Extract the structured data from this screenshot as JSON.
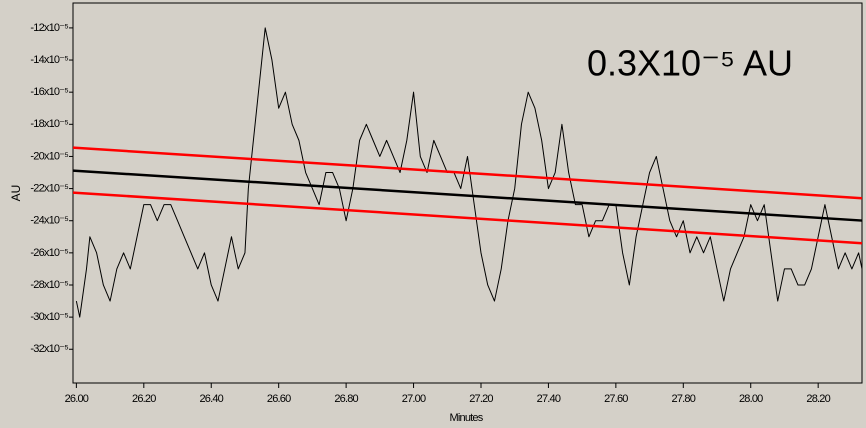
{
  "chart_data": {
    "type": "line",
    "ylabel": "AU",
    "xlabel": "Minutes",
    "annotation": "0.3X10⁻⁵ AU",
    "xlim": [
      25.99,
      28.33
    ],
    "ylim": [
      -0.000341,
      -0.0001045
    ],
    "xticks": [
      {
        "value": 26.0,
        "label": "26.00"
      },
      {
        "value": 26.2,
        "label": "26.20"
      },
      {
        "value": 26.4,
        "label": "26.40"
      },
      {
        "value": 26.6,
        "label": "26.60"
      },
      {
        "value": 26.8,
        "label": "26.80"
      },
      {
        "value": 27.0,
        "label": "27.00"
      },
      {
        "value": 27.2,
        "label": "27.20"
      },
      {
        "value": 27.4,
        "label": "27.40"
      },
      {
        "value": 27.6,
        "label": "27.60"
      },
      {
        "value": 27.8,
        "label": "27.80"
      },
      {
        "value": 28.0,
        "label": "28.00"
      },
      {
        "value": 28.2,
        "label": "28.20"
      }
    ],
    "yticks": [
      {
        "value": -0.00012,
        "label": "-12x10⁻⁵"
      },
      {
        "value": -0.00014,
        "label": "-14x10⁻⁵"
      },
      {
        "value": -0.00016,
        "label": "-16x10⁻⁵"
      },
      {
        "value": -0.00018,
        "label": "-18x10⁻⁵"
      },
      {
        "value": -0.0002,
        "label": "-20x10⁻⁵"
      },
      {
        "value": -0.00022,
        "label": "-22x10⁻⁵"
      },
      {
        "value": -0.00024,
        "label": "-24x10⁻⁵"
      },
      {
        "value": -0.00026,
        "label": "-26x10⁻⁵"
      },
      {
        "value": -0.00028,
        "label": "-28x10⁻⁵"
      },
      {
        "value": -0.0003,
        "label": "-30x10⁻⁵"
      },
      {
        "value": -0.00032,
        "label": "-32x10⁻⁵"
      }
    ],
    "series": [
      {
        "color": "#000000",
        "width": 1,
        "x": [
          26.0,
          26.01,
          26.03,
          26.04,
          26.06,
          26.08,
          26.1,
          26.12,
          26.14,
          26.16,
          26.18,
          26.2,
          26.22,
          26.24,
          26.26,
          26.28,
          26.3,
          26.32,
          26.34,
          26.36,
          26.38,
          26.4,
          26.42,
          26.44,
          26.46,
          26.48,
          26.5,
          26.51,
          26.53,
          26.55,
          26.56,
          26.58,
          26.6,
          26.62,
          26.64,
          26.66,
          26.68,
          26.7,
          26.72,
          26.74,
          26.76,
          26.78,
          26.8,
          26.82,
          26.84,
          26.86,
          26.88,
          26.9,
          26.92,
          26.94,
          26.96,
          26.98,
          27.0,
          27.02,
          27.04,
          27.06,
          27.08,
          27.1,
          27.12,
          27.14,
          27.16,
          27.18,
          27.2,
          27.22,
          27.24,
          27.26,
          27.28,
          27.3,
          27.32,
          27.34,
          27.36,
          27.38,
          27.4,
          27.42,
          27.44,
          27.46,
          27.48,
          27.5,
          27.52,
          27.54,
          27.56,
          27.58,
          27.6,
          27.62,
          27.64,
          27.66,
          27.68,
          27.7,
          27.72,
          27.74,
          27.76,
          27.78,
          27.8,
          27.82,
          27.84,
          27.86,
          27.88,
          27.9,
          27.92,
          27.94,
          27.96,
          27.98,
          28.0,
          28.02,
          28.04,
          28.06,
          28.08,
          28.1,
          28.12,
          28.14,
          28.16,
          28.18,
          28.2,
          28.22,
          28.24,
          28.26,
          28.28,
          28.3,
          28.32,
          28.33
        ],
        "values": [
          -0.00029,
          -0.0003,
          -0.00027,
          -0.00025,
          -0.00026,
          -0.00028,
          -0.00029,
          -0.00027,
          -0.00026,
          -0.00027,
          -0.00025,
          -0.00023,
          -0.00023,
          -0.00024,
          -0.00023,
          -0.00023,
          -0.00024,
          -0.00025,
          -0.00026,
          -0.00027,
          -0.00026,
          -0.00028,
          -0.00029,
          -0.00027,
          -0.00025,
          -0.00027,
          -0.00026,
          -0.00022,
          -0.00018,
          -0.00014,
          -0.00012,
          -0.00014,
          -0.00017,
          -0.00016,
          -0.00018,
          -0.00019,
          -0.00021,
          -0.00022,
          -0.00023,
          -0.00021,
          -0.00021,
          -0.00022,
          -0.00024,
          -0.00022,
          -0.00019,
          -0.00018,
          -0.00019,
          -0.0002,
          -0.00019,
          -0.0002,
          -0.00021,
          -0.00019,
          -0.00016,
          -0.0002,
          -0.00021,
          -0.00019,
          -0.0002,
          -0.00021,
          -0.00021,
          -0.00022,
          -0.0002,
          -0.00023,
          -0.00026,
          -0.00028,
          -0.00029,
          -0.00027,
          -0.00024,
          -0.00022,
          -0.00018,
          -0.00016,
          -0.00017,
          -0.00019,
          -0.00022,
          -0.00021,
          -0.00018,
          -0.00021,
          -0.00023,
          -0.00023,
          -0.00025,
          -0.00024,
          -0.00024,
          -0.00023,
          -0.00023,
          -0.00026,
          -0.00028,
          -0.00025,
          -0.00023,
          -0.00021,
          -0.0002,
          -0.00022,
          -0.00024,
          -0.00025,
          -0.00024,
          -0.00026,
          -0.00025,
          -0.00026,
          -0.00025,
          -0.00027,
          -0.00029,
          -0.00027,
          -0.00026,
          -0.00025,
          -0.00023,
          -0.00024,
          -0.00023,
          -0.00026,
          -0.00029,
          -0.00027,
          -0.00027,
          -0.00028,
          -0.00028,
          -0.00027,
          -0.00025,
          -0.00023,
          -0.00025,
          -0.00027,
          -0.00026,
          -0.00027,
          -0.00026,
          -0.00027
        ]
      },
      {
        "color": "#000000",
        "width": 2.5,
        "x": [
          25.99,
          28.33
        ],
        "values": [
          -0.0002088,
          -0.0002399
        ]
      },
      {
        "color": "#ff0000",
        "width": 2.5,
        "x": [
          25.99,
          28.33
        ],
        "values": [
          -0.0001945,
          -0.000226
        ]
      },
      {
        "color": "#ff0000",
        "width": 2.5,
        "x": [
          25.99,
          28.33
        ],
        "values": [
          -0.0002225,
          -0.000254
        ]
      }
    ]
  }
}
